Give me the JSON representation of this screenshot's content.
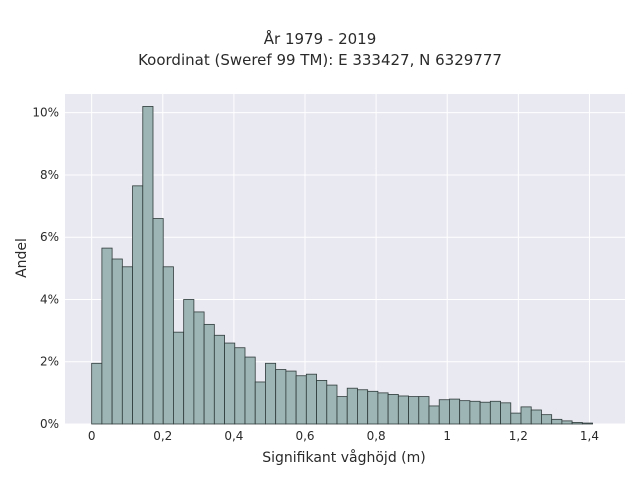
{
  "chart_data": {
    "type": "bar",
    "title": "År 1979 - 2019",
    "subtitle": "Koordinat (Sweref 99 TM): E 333427, N 6329777",
    "xlabel": "Signifikant våghöjd (m)",
    "ylabel": "Andel",
    "xlim": [
      -0.075,
      1.5
    ],
    "ylim": [
      0,
      10.6
    ],
    "x_ticks": [
      0,
      0.2,
      0.4,
      0.6,
      0.8,
      1.0,
      1.2,
      1.4
    ],
    "x_tick_labels": [
      "0",
      "0,2",
      "0,4",
      "0,6",
      "0,8",
      "1",
      "1,2",
      "1,4"
    ],
    "y_ticks": [
      0,
      2,
      4,
      6,
      8,
      10
    ],
    "y_tick_labels": [
      "0%",
      "2%",
      "4%",
      "6%",
      "8%",
      "10%"
    ],
    "bin_width": 0.02875,
    "bin_start": 0,
    "values": [
      1.95,
      5.65,
      5.3,
      5.05,
      7.65,
      10.2,
      6.6,
      5.05,
      2.95,
      4.0,
      3.6,
      3.2,
      2.85,
      2.6,
      2.45,
      2.15,
      1.35,
      1.95,
      1.75,
      1.7,
      1.55,
      1.6,
      1.4,
      1.25,
      0.88,
      1.15,
      1.1,
      1.05,
      1.0,
      0.95,
      0.9,
      0.88,
      0.88,
      0.58,
      0.78,
      0.8,
      0.75,
      0.73,
      0.7,
      0.73,
      0.68,
      0.35,
      0.55,
      0.45,
      0.3,
      0.15,
      0.1,
      0.05,
      0.03
    ],
    "grid": true,
    "colors": {
      "bar_fill": "#9db5b4",
      "bar_stroke": "#2f3b3b",
      "plot_bg": "#e9e9f1",
      "grid": "#ffffff"
    }
  }
}
